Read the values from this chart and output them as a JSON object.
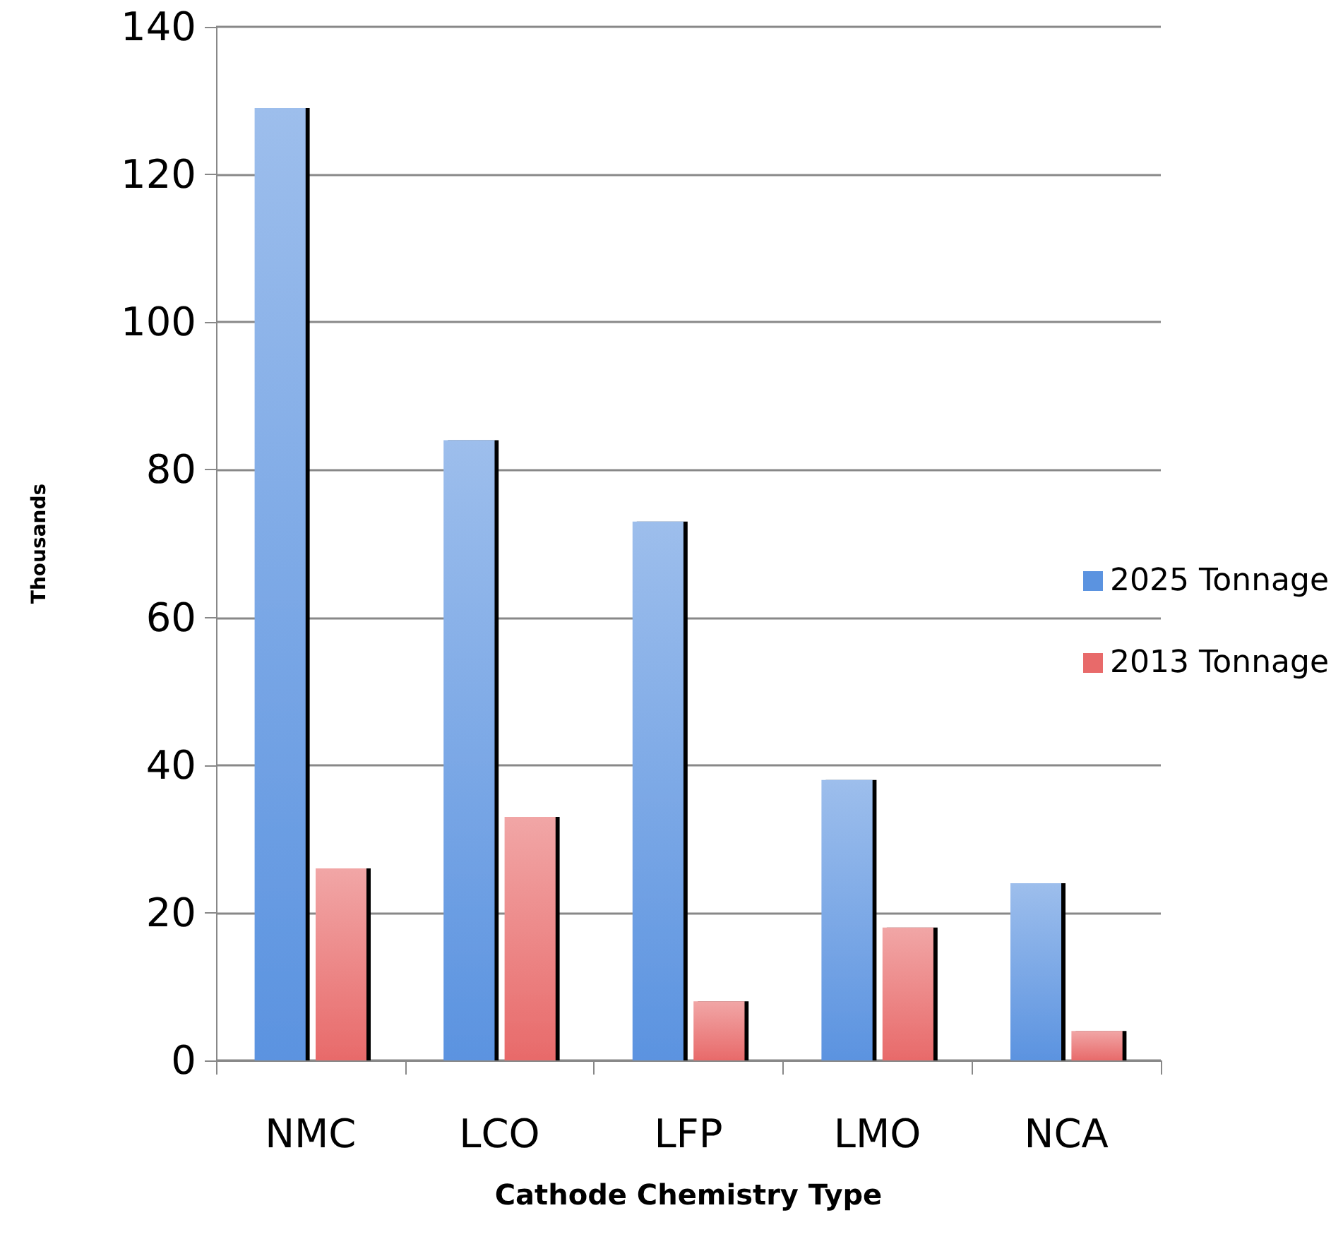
{
  "chart_data": {
    "type": "bar",
    "xlabel": "Cathode Chemistry Type",
    "ylabel": "Thousands",
    "categories": [
      "NMC",
      "LCO",
      "LFP",
      "LMO",
      "NCA"
    ],
    "series": [
      {
        "name": "2025 Tonnage",
        "color": "#5b93e0",
        "values": [
          129,
          84,
          73,
          38,
          24
        ]
      },
      {
        "name": "2013 Tonnage",
        "color": "#e86a6a",
        "values": [
          26,
          33,
          8,
          18,
          4
        ]
      }
    ],
    "ylim": [
      0,
      140
    ],
    "yticks": [
      0,
      20,
      40,
      60,
      80,
      100,
      120,
      140
    ],
    "grid": "y",
    "legend": "right"
  }
}
